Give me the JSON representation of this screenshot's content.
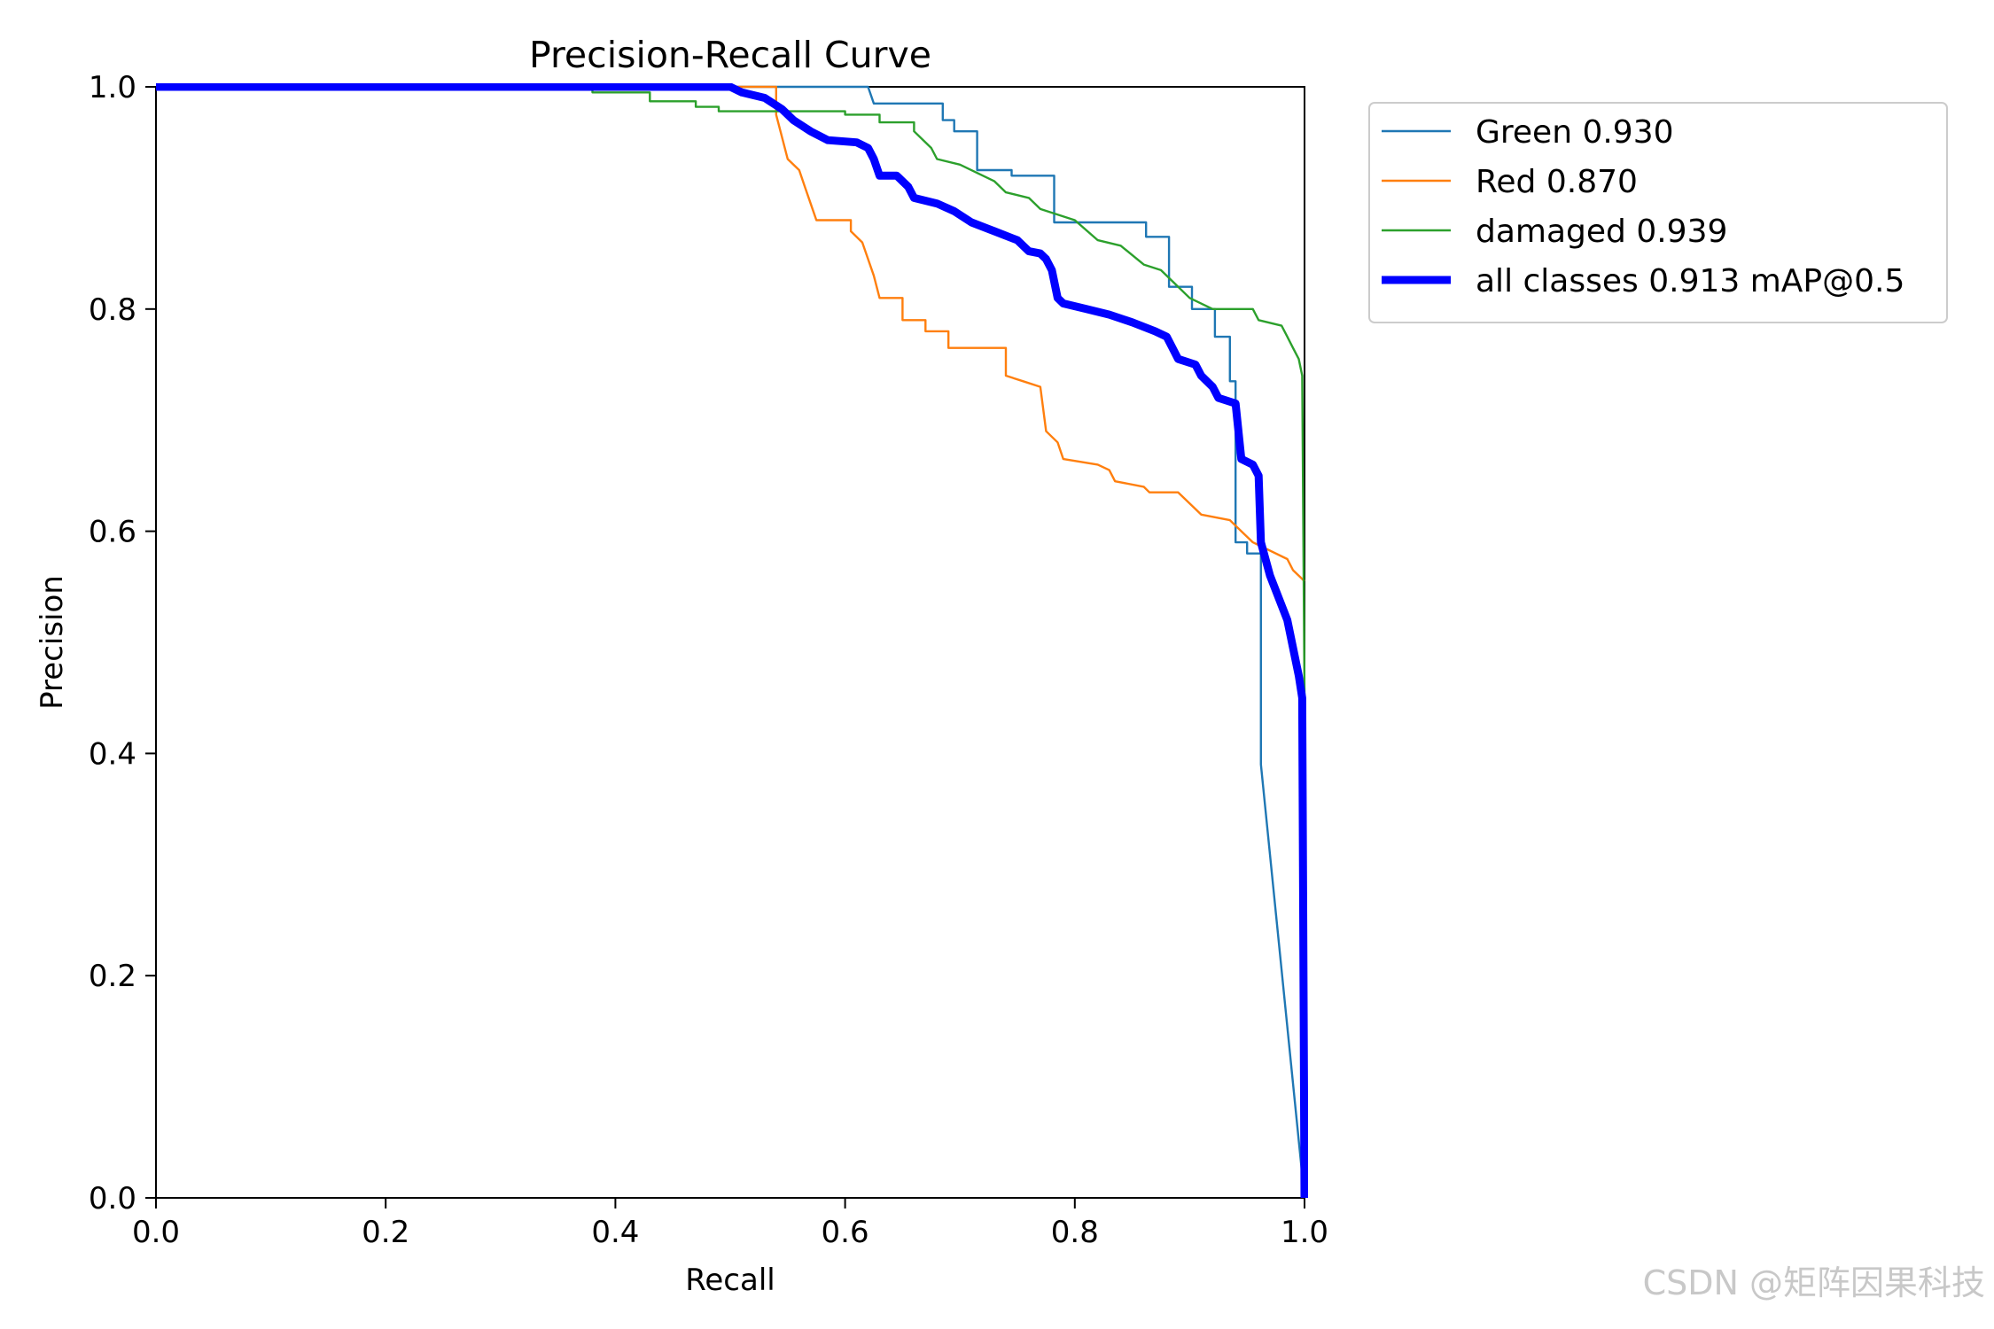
{
  "chart_data": {
    "type": "line",
    "title": "Precision-Recall Curve",
    "xlabel": "Recall",
    "ylabel": "Precision",
    "xlim": [
      0,
      1
    ],
    "ylim": [
      0,
      1
    ],
    "xticks": [
      "0.0",
      "0.2",
      "0.4",
      "0.6",
      "0.8",
      "1.0"
    ],
    "yticks": [
      "0.0",
      "0.2",
      "0.4",
      "0.6",
      "0.8",
      "1.0"
    ],
    "legend_position": "outside-top-right",
    "grid": false,
    "series": [
      {
        "name": "Green 0.930",
        "color": "#1f77b4",
        "width": "thin",
        "points": [
          [
            0,
            1
          ],
          [
            0.62,
            1
          ],
          [
            0.625,
            0.985
          ],
          [
            0.685,
            0.985
          ],
          [
            0.685,
            0.97
          ],
          [
            0.695,
            0.97
          ],
          [
            0.695,
            0.96
          ],
          [
            0.715,
            0.96
          ],
          [
            0.715,
            0.925
          ],
          [
            0.745,
            0.925
          ],
          [
            0.745,
            0.92
          ],
          [
            0.782,
            0.92
          ],
          [
            0.782,
            0.878
          ],
          [
            0.862,
            0.878
          ],
          [
            0.862,
            0.865
          ],
          [
            0.882,
            0.865
          ],
          [
            0.882,
            0.82
          ],
          [
            0.902,
            0.82
          ],
          [
            0.902,
            0.8
          ],
          [
            0.922,
            0.8
          ],
          [
            0.922,
            0.775
          ],
          [
            0.935,
            0.775
          ],
          [
            0.935,
            0.735
          ],
          [
            0.94,
            0.735
          ],
          [
            0.94,
            0.59
          ],
          [
            0.95,
            0.59
          ],
          [
            0.95,
            0.58
          ],
          [
            0.962,
            0.58
          ],
          [
            0.962,
            0.39
          ],
          [
            1.0,
            0.0
          ]
        ]
      },
      {
        "name": "Red 0.870",
        "color": "#ff7f0e",
        "width": "thin",
        "points": [
          [
            0,
            1
          ],
          [
            0.54,
            1
          ],
          [
            0.54,
            0.975
          ],
          [
            0.545,
            0.955
          ],
          [
            0.55,
            0.935
          ],
          [
            0.56,
            0.925
          ],
          [
            0.565,
            0.91
          ],
          [
            0.57,
            0.895
          ],
          [
            0.575,
            0.88
          ],
          [
            0.605,
            0.88
          ],
          [
            0.605,
            0.87
          ],
          [
            0.615,
            0.86
          ],
          [
            0.62,
            0.845
          ],
          [
            0.625,
            0.83
          ],
          [
            0.63,
            0.81
          ],
          [
            0.65,
            0.81
          ],
          [
            0.65,
            0.79
          ],
          [
            0.67,
            0.79
          ],
          [
            0.67,
            0.78
          ],
          [
            0.69,
            0.78
          ],
          [
            0.69,
            0.765
          ],
          [
            0.74,
            0.765
          ],
          [
            0.74,
            0.74
          ],
          [
            0.755,
            0.735
          ],
          [
            0.77,
            0.73
          ],
          [
            0.775,
            0.69
          ],
          [
            0.785,
            0.68
          ],
          [
            0.79,
            0.665
          ],
          [
            0.82,
            0.66
          ],
          [
            0.83,
            0.655
          ],
          [
            0.835,
            0.645
          ],
          [
            0.86,
            0.64
          ],
          [
            0.865,
            0.635
          ],
          [
            0.89,
            0.635
          ],
          [
            0.91,
            0.615
          ],
          [
            0.935,
            0.61
          ],
          [
            0.945,
            0.6
          ],
          [
            0.955,
            0.59
          ],
          [
            0.985,
            0.575
          ],
          [
            0.99,
            0.565
          ],
          [
            1.0,
            0.555
          ]
        ]
      },
      {
        "name": "damaged 0.939",
        "color": "#2ca02c",
        "width": "thin",
        "points": [
          [
            0,
            1
          ],
          [
            0.38,
            1
          ],
          [
            0.38,
            0.995
          ],
          [
            0.43,
            0.995
          ],
          [
            0.43,
            0.987
          ],
          [
            0.47,
            0.987
          ],
          [
            0.47,
            0.982
          ],
          [
            0.49,
            0.982
          ],
          [
            0.49,
            0.978
          ],
          [
            0.6,
            0.978
          ],
          [
            0.6,
            0.975
          ],
          [
            0.63,
            0.975
          ],
          [
            0.63,
            0.968
          ],
          [
            0.66,
            0.968
          ],
          [
            0.66,
            0.96
          ],
          [
            0.675,
            0.945
          ],
          [
            0.68,
            0.935
          ],
          [
            0.7,
            0.93
          ],
          [
            0.73,
            0.915
          ],
          [
            0.74,
            0.905
          ],
          [
            0.76,
            0.9
          ],
          [
            0.77,
            0.89
          ],
          [
            0.8,
            0.88
          ],
          [
            0.82,
            0.862
          ],
          [
            0.84,
            0.857
          ],
          [
            0.86,
            0.84
          ],
          [
            0.875,
            0.835
          ],
          [
            0.885,
            0.825
          ],
          [
            0.9,
            0.81
          ],
          [
            0.92,
            0.8
          ],
          [
            0.955,
            0.8
          ],
          [
            0.96,
            0.79
          ],
          [
            0.98,
            0.785
          ],
          [
            0.985,
            0.775
          ],
          [
            0.99,
            0.765
          ],
          [
            0.995,
            0.755
          ],
          [
            0.998,
            0.74
          ],
          [
            1.0,
            0.45
          ]
        ]
      },
      {
        "name": "all classes 0.913 mAP@0.5",
        "color": "#0000ff",
        "width": "thick",
        "points": [
          [
            0,
            1
          ],
          [
            0.5,
            1
          ],
          [
            0.51,
            0.995
          ],
          [
            0.53,
            0.99
          ],
          [
            0.545,
            0.98
          ],
          [
            0.555,
            0.97
          ],
          [
            0.57,
            0.96
          ],
          [
            0.585,
            0.952
          ],
          [
            0.61,
            0.95
          ],
          [
            0.62,
            0.945
          ],
          [
            0.625,
            0.935
          ],
          [
            0.63,
            0.92
          ],
          [
            0.645,
            0.92
          ],
          [
            0.655,
            0.91
          ],
          [
            0.66,
            0.9
          ],
          [
            0.68,
            0.895
          ],
          [
            0.695,
            0.888
          ],
          [
            0.71,
            0.878
          ],
          [
            0.73,
            0.87
          ],
          [
            0.75,
            0.862
          ],
          [
            0.76,
            0.852
          ],
          [
            0.77,
            0.85
          ],
          [
            0.775,
            0.845
          ],
          [
            0.78,
            0.835
          ],
          [
            0.785,
            0.81
          ],
          [
            0.79,
            0.805
          ],
          [
            0.81,
            0.8
          ],
          [
            0.83,
            0.795
          ],
          [
            0.85,
            0.788
          ],
          [
            0.87,
            0.78
          ],
          [
            0.88,
            0.775
          ],
          [
            0.885,
            0.765
          ],
          [
            0.89,
            0.755
          ],
          [
            0.905,
            0.75
          ],
          [
            0.91,
            0.74
          ],
          [
            0.92,
            0.73
          ],
          [
            0.925,
            0.72
          ],
          [
            0.94,
            0.715
          ],
          [
            0.945,
            0.665
          ],
          [
            0.955,
            0.66
          ],
          [
            0.96,
            0.65
          ],
          [
            0.962,
            0.59
          ],
          [
            0.97,
            0.56
          ],
          [
            0.985,
            0.52
          ],
          [
            0.995,
            0.47
          ],
          [
            0.998,
            0.45
          ],
          [
            1.0,
            0.0
          ]
        ]
      }
    ]
  },
  "watermark": "CSDN @矩阵因果科技"
}
